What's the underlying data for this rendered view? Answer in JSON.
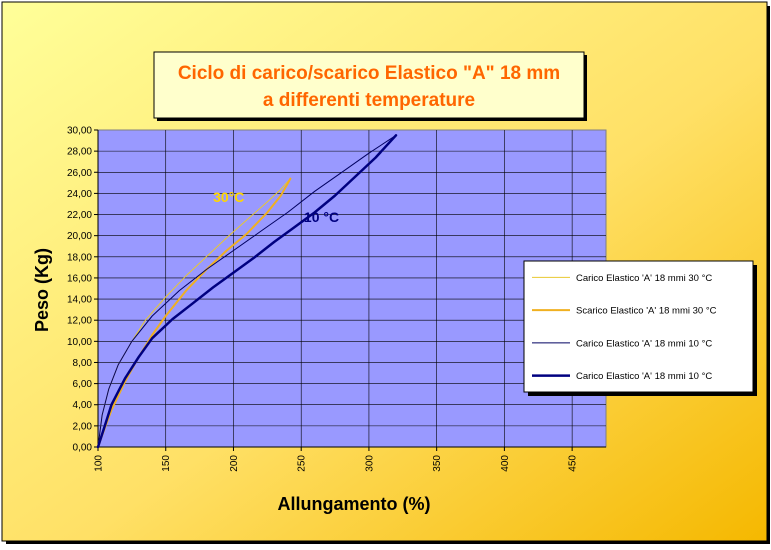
{
  "chart_data": {
    "type": "line",
    "title_lines": [
      "Ciclo di carico/scarico Elastico \"A\" 18 mm",
      "a differenti temperature"
    ],
    "xlabel": "Allungamento (%)",
    "ylabel": "Peso (Kg)",
    "xlim": [
      100,
      475
    ],
    "ylim": [
      0,
      30
    ],
    "x_ticks": [
      100,
      150,
      200,
      250,
      300,
      350,
      400,
      450
    ],
    "y_ticks": [
      "0,00",
      "2,00",
      "4,00",
      "6,00",
      "8,00",
      "10,00",
      "12,00",
      "14,00",
      "16,00",
      "18,00",
      "20,00",
      "22,00",
      "24,00",
      "26,00",
      "28,00",
      "30,00"
    ],
    "grid": true,
    "legend_position": "right",
    "annotations": [
      {
        "text": "30°C",
        "x": 185,
        "y": 23.2,
        "color": "#FFD700"
      },
      {
        "text": "10 °C",
        "x": 252,
        "y": 21.3,
        "color": "#000080"
      }
    ],
    "series": [
      {
        "name": "Carico Elastico 'A' 18 mmi 30 °C",
        "color": "#E8C830",
        "width": 1,
        "x": [
          100,
          103,
          108,
          115,
          125,
          135,
          150,
          165,
          180,
          195,
          210,
          225,
          235,
          242
        ],
        "y": [
          0,
          3,
          5.5,
          7.8,
          10,
          12,
          14.2,
          16.2,
          18,
          19.8,
          21.5,
          23.2,
          24.4,
          25.4
        ]
      },
      {
        "name": "Scarico Elastico 'A' 18 mmi 30 °C",
        "color": "#F0B020",
        "width": 2,
        "x": [
          242,
          235,
          225,
          210,
          195,
          180,
          165,
          150,
          140,
          130,
          120,
          110,
          105,
          100
        ],
        "y": [
          25.4,
          23.8,
          22.2,
          20.2,
          18.6,
          16.8,
          14.8,
          12.4,
          10.6,
          8.5,
          6.2,
          3.5,
          1.8,
          0
        ]
      },
      {
        "name": "Carico Elastico 'A' 18 mmi 10 °C",
        "color": "#000060",
        "width": 1,
        "x": [
          100,
          103,
          108,
          115,
          125,
          140,
          160,
          180,
          200,
          220,
          240,
          260,
          280,
          300,
          320
        ],
        "y": [
          0,
          3,
          5.5,
          7.8,
          10,
          12.4,
          14.8,
          16.8,
          18.6,
          20.4,
          22.2,
          24.2,
          26,
          27.8,
          29.5
        ]
      },
      {
        "name": "Carico Elastico 'A' 18 mmi 10 °C",
        "color": "#000080",
        "width": 2.5,
        "x": [
          320,
          305,
          290,
          275,
          260,
          245,
          230,
          215,
          200,
          185,
          170,
          155,
          140,
          130,
          120,
          110,
          105,
          100
        ],
        "y": [
          29.5,
          27.4,
          25.6,
          23.8,
          22.2,
          20.8,
          19.4,
          17.9,
          16.5,
          15.1,
          13.6,
          12.1,
          10.3,
          8.5,
          6.5,
          4,
          2,
          0
        ]
      }
    ]
  }
}
